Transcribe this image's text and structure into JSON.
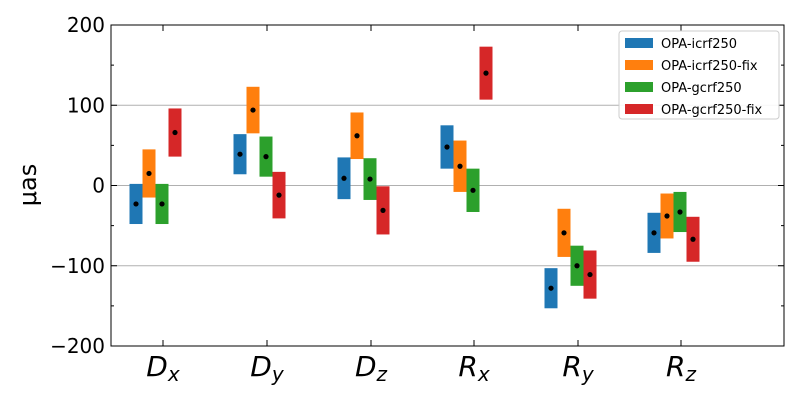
{
  "chart_data": {
    "type": "errorbar",
    "ylabel": "μas",
    "ylim": [
      -200,
      200
    ],
    "yticks": [
      -200,
      -100,
      0,
      100,
      200
    ],
    "ytick_labels": [
      "−200",
      "−100",
      "0",
      "100",
      "200"
    ],
    "grid": "horizontal at ±100 and 0",
    "legend": "top-right",
    "categories": [
      {
        "main": "D",
        "sub": "x"
      },
      {
        "main": "D",
        "sub": "y"
      },
      {
        "main": "D",
        "sub": "z"
      },
      {
        "main": "R",
        "sub": "x"
      },
      {
        "main": "R",
        "sub": "y"
      },
      {
        "main": "R",
        "sub": "z"
      }
    ],
    "series": [
      {
        "name": "OPA-icrf250",
        "color": "#1f77b4",
        "values": [
          -23,
          39,
          9,
          48,
          -128,
          -59
        ],
        "errors": [
          25,
          25,
          26,
          27,
          25,
          25
        ]
      },
      {
        "name": "OPA-icrf250-fix",
        "color": "#ff7f0e",
        "values": [
          15,
          94,
          62,
          24,
          -59,
          -38
        ],
        "errors": [
          30,
          29,
          29,
          32,
          30,
          28
        ]
      },
      {
        "name": "OPA-gcrf250",
        "color": "#2ca02c",
        "values": [
          -23,
          36,
          8,
          -6,
          -100,
          -33
        ],
        "errors": [
          25,
          25,
          26,
          27,
          25,
          25
        ]
      },
      {
        "name": "OPA-gcrf250-fix",
        "color": "#d62728",
        "values": [
          66,
          -12,
          -31,
          140,
          -111,
          -67
        ],
        "errors": [
          30,
          29,
          30,
          33,
          30,
          28
        ]
      }
    ]
  }
}
